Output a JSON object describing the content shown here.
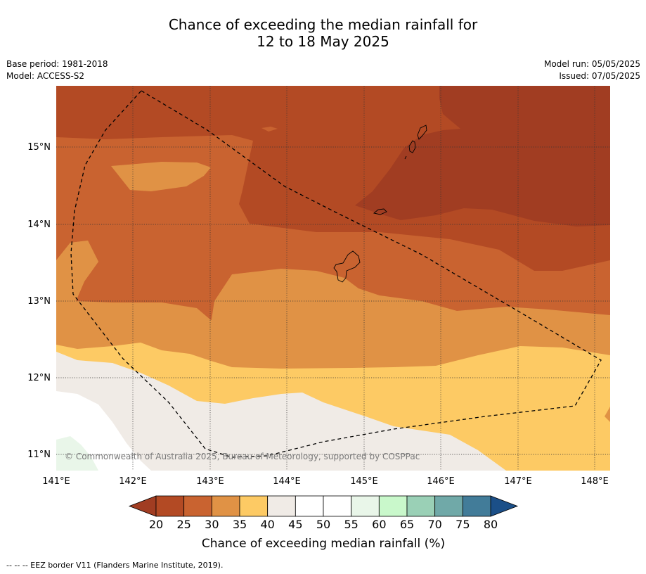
{
  "title": {
    "line1": "Chance of exceeding the median rainfall for",
    "line2": "12 to 18 May 2025"
  },
  "meta": {
    "base_period": "Base period: 1981-2018",
    "model": "Model: ACCESS-S2",
    "model_run": "Model run: 05/05/2025",
    "issued": "Issued: 07/05/2025"
  },
  "map": {
    "copyright": "© Commonwealth of Australia 2025, Bureau of Meteorology, supported by COSPPac",
    "lon_labels": [
      "141°E",
      "142°E",
      "143°E",
      "144°E",
      "145°E",
      "146°E",
      "147°E",
      "148°E"
    ],
    "lat_labels": [
      "15°N",
      "14°N",
      "13°N",
      "12°N",
      "11°N"
    ],
    "extent": {
      "lon": [
        141.0,
        148.2
      ],
      "lat": [
        10.8,
        15.8
      ]
    }
  },
  "colorbar": {
    "ticks": [
      "20",
      "25",
      "30",
      "35",
      "40",
      "45",
      "50",
      "55",
      "60",
      "65",
      "70",
      "75",
      "80"
    ],
    "colors": [
      "#a13d22",
      "#b34a24",
      "#c96330",
      "#e09245",
      "#fdca64",
      "#f0ebe6",
      "#ffffff",
      "#ffffff",
      "#e9f6e9",
      "#c9f8cb",
      "#9ad0b6",
      "#70a9a8",
      "#427c99",
      "#1b4f88"
    ],
    "label": "Chance of exceeding median rainfall (%)"
  },
  "legend_note": "-- -- -- EEZ border V11 (Flanders Marine Institute, 2019)."
}
